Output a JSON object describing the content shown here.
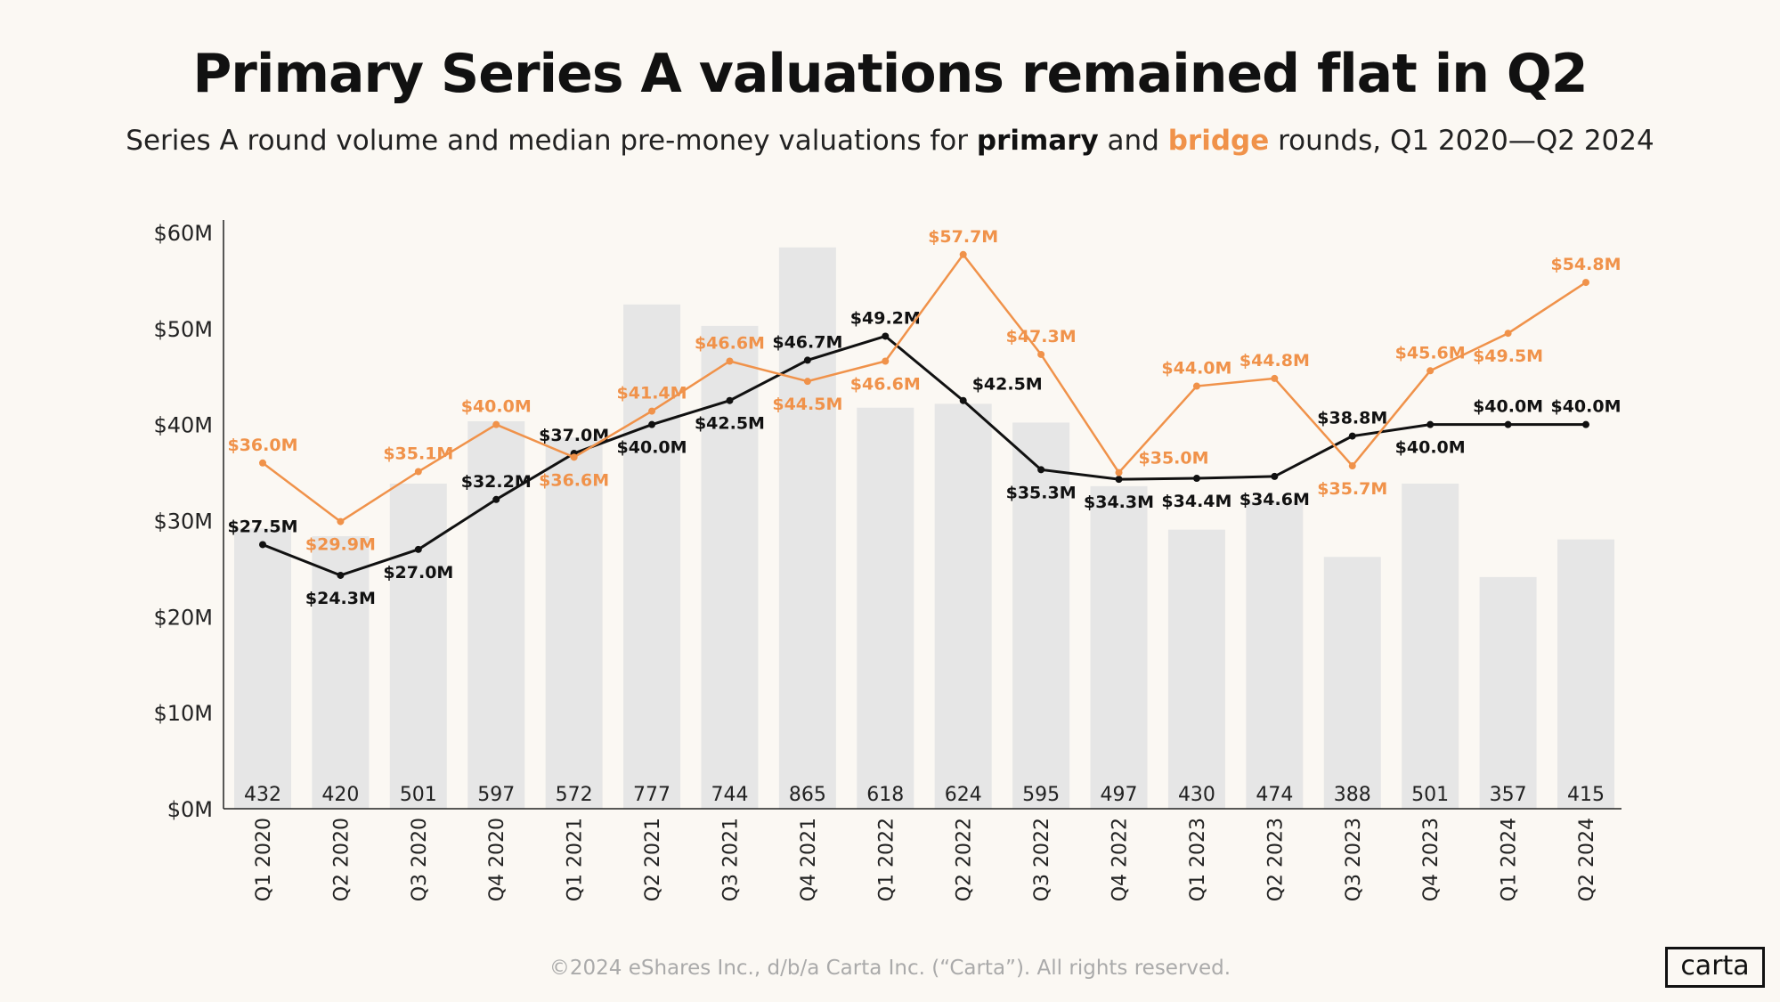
{
  "title": "Primary Series A valuations remained flat in Q2",
  "subtitle": {
    "part1": "Series A round volume and median pre-money valuations for ",
    "primary": "primary",
    "part2": " and ",
    "bridge": "bridge",
    "part3": " rounds, Q1 2020—Q2 2024"
  },
  "footer": "©2024 eShares Inc., d/b/a Carta Inc. (“Carta”). All rights reserved.",
  "logo": "carta",
  "colors": {
    "primary": "#111111",
    "bridge": "#F0924A",
    "bars": "#E6E6E6",
    "background": "#FBF8F3"
  },
  "chart_data": {
    "type": "bar+line",
    "categories": [
      "Q1 2020",
      "Q2 2020",
      "Q3 2020",
      "Q4 2020",
      "Q1 2021",
      "Q2 2021",
      "Q3 2021",
      "Q4 2021",
      "Q1 2022",
      "Q2 2022",
      "Q3 2022",
      "Q4 2022",
      "Q1 2023",
      "Q2 2023",
      "Q3 2023",
      "Q4 2023",
      "Q1 2024",
      "Q2 2024"
    ],
    "ylim": [
      0,
      60
    ],
    "yticks": [
      "$0M",
      "$10M",
      "$20M",
      "$30M",
      "$40M",
      "$50M",
      "$60M"
    ],
    "bars": {
      "name": "round volume",
      "values": [
        432,
        420,
        501,
        597,
        572,
        777,
        744,
        865,
        618,
        624,
        595,
        497,
        430,
        474,
        388,
        501,
        357,
        415
      ]
    },
    "series": [
      {
        "name": "primary",
        "values": [
          27.5,
          24.3,
          27.0,
          32.2,
          37.0,
          40.0,
          42.5,
          46.7,
          49.2,
          42.5,
          35.3,
          34.3,
          34.4,
          34.6,
          38.8,
          40.0,
          40.0,
          40.0
        ],
        "labels": [
          "$27.5M",
          "$24.3M",
          "$27.0M",
          "$32.2M",
          "$37.0M",
          "$40.0M",
          "$42.5M",
          "$46.7M",
          "$49.2M",
          "$42.5M",
          "$35.3M",
          "$34.3M",
          "$34.4M",
          "$34.6M",
          "$38.8M",
          "$40.0M",
          "$40.0M",
          "$40.0M"
        ],
        "label_side": [
          "above",
          "below",
          "below",
          "above",
          "above",
          "below",
          "below",
          "above",
          "above",
          "above-right",
          "below",
          "below",
          "below",
          "below",
          "above",
          "below",
          "above",
          "above"
        ]
      },
      {
        "name": "bridge",
        "values": [
          36.0,
          29.9,
          35.1,
          40.0,
          36.6,
          41.4,
          46.6,
          44.5,
          46.6,
          57.7,
          47.3,
          35.0,
          44.0,
          44.8,
          35.7,
          45.6,
          49.5,
          54.8
        ],
        "labels": [
          "$36.0M",
          "$29.9M",
          "$35.1M",
          "$40.0M",
          "$36.6M",
          "$41.4M",
          "$46.6M",
          "$44.5M",
          "$46.6M",
          "$57.7M",
          "$47.3M",
          "$35.0M",
          "$44.0M",
          "$44.8M",
          "$35.7M",
          "$45.6M",
          "$49.5M",
          "$54.8M"
        ],
        "label_side": [
          "above",
          "below",
          "above",
          "above",
          "below",
          "above",
          "above",
          "below",
          "below",
          "above",
          "above",
          "right",
          "above",
          "above",
          "below",
          "above",
          "below",
          "above"
        ]
      }
    ],
    "grid": false,
    "legend": "none (colored words in subtitle)"
  }
}
